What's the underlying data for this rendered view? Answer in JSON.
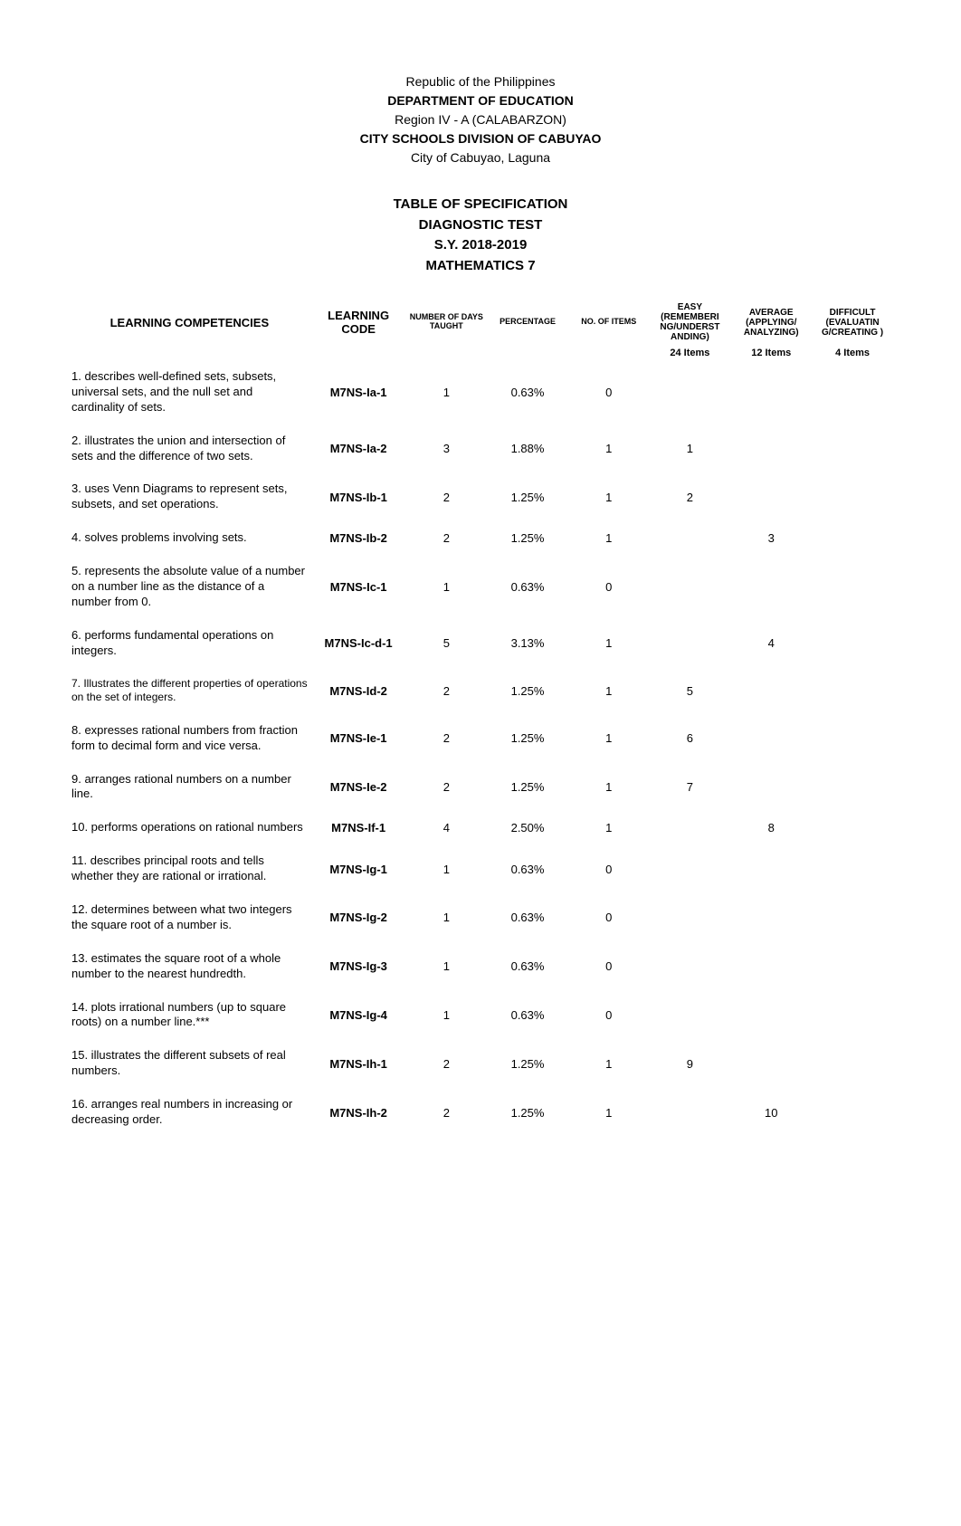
{
  "header": {
    "country": "Republic of the Philippines",
    "department": "DEPARTMENT OF EDUCATION",
    "region": "Region IV - A (CALABARZON)",
    "division": "CITY SCHOOLS DIVISION OF CABUYAO",
    "city": "City of Cabuyao, Laguna"
  },
  "title": {
    "line1": "TABLE OF SPECIFICATION",
    "line2": "DIAGNOSTIC TEST",
    "line3": "S.Y. 2018-2019",
    "line4": "MATHEMATICS 7"
  },
  "columns": {
    "comp": "LEARNING COMPETENCIES",
    "code": "LEARNING CODE",
    "days": "NUMBER OF DAYS TAUGHT",
    "pct": "PERCENTAGE",
    "items": "NO. OF ITEMS",
    "easy": "EASY (REMEMBERI NG/UNDERST ANDING)",
    "avg": "AVERAGE (APPLYING/ ANALYZING)",
    "diff": "DIFFICULT (EVALUATIN G/CREATING )"
  },
  "itemsRow": {
    "easy": "24 Items",
    "avg": "12 Items",
    "diff": "4 Items"
  },
  "rows": [
    {
      "comp": "1. describes well-defined sets, subsets, universal sets, and the null set and cardinality of sets.",
      "code": "M7NS-Ia-1",
      "days": "1",
      "pct": "0.63%",
      "items": "0",
      "easy": "",
      "avg": "",
      "diff": ""
    },
    {
      "comp": "2. illustrates the union and intersection of sets and the difference of two sets.",
      "code": "M7NS-Ia-2",
      "days": "3",
      "pct": "1.88%",
      "items": "1",
      "easy": "1",
      "avg": "",
      "diff": ""
    },
    {
      "comp": "3. uses Venn Diagrams to represent sets, subsets, and set operations.",
      "code": "M7NS-Ib-1",
      "days": "2",
      "pct": "1.25%",
      "items": "1",
      "easy": "2",
      "avg": "",
      "diff": ""
    },
    {
      "comp": "4. solves problems involving sets.",
      "code": "M7NS-Ib-2",
      "days": "2",
      "pct": "1.25%",
      "items": "1",
      "easy": "",
      "avg": "3",
      "diff": ""
    },
    {
      "comp": "5. represents the absolute value of a number on a number line as the distance of a number from 0.",
      "code": "M7NS-Ic-1",
      "days": "1",
      "pct": "0.63%",
      "items": "0",
      "easy": "",
      "avg": "",
      "diff": ""
    },
    {
      "comp": "6. performs fundamental operations on integers.",
      "code": "M7NS-Ic-d-1",
      "days": "5",
      "pct": "3.13%",
      "items": "1",
      "easy": "",
      "avg": "4",
      "diff": ""
    },
    {
      "comp": "7. Illustrates the different properties of operations on the set of integers.",
      "code": "M7NS-Id-2",
      "days": "2",
      "pct": "1.25%",
      "items": "1",
      "easy": "5",
      "avg": "",
      "diff": ""
    },
    {
      "comp": "8. expresses rational numbers from fraction form to decimal form and vice versa.",
      "code": "M7NS-Ie-1",
      "days": "2",
      "pct": "1.25%",
      "items": "1",
      "easy": "6",
      "avg": "",
      "diff": ""
    },
    {
      "comp": "9. arranges rational numbers on a number line.",
      "code": "M7NS-Ie-2",
      "days": "2",
      "pct": "1.25%",
      "items": "1",
      "easy": "7",
      "avg": "",
      "diff": ""
    },
    {
      "comp": "10. performs operations on rational numbers",
      "code": "M7NS-If-1",
      "days": "4",
      "pct": "2.50%",
      "items": "1",
      "easy": "",
      "avg": "8",
      "diff": ""
    },
    {
      "comp": "11. describes principal roots and tells whether they are rational or irrational.",
      "code": "M7NS-Ig-1",
      "days": "1",
      "pct": "0.63%",
      "items": "0",
      "easy": "",
      "avg": "",
      "diff": ""
    },
    {
      "comp": "12. determines between what two integers the square root of a number is.",
      "code": "M7NS-Ig-2",
      "days": "1",
      "pct": "0.63%",
      "items": "0",
      "easy": "",
      "avg": "",
      "diff": ""
    },
    {
      "comp": "13. estimates the square root of a whole number to the nearest hundredth.",
      "code": "M7NS-Ig-3",
      "days": "1",
      "pct": "0.63%",
      "items": "0",
      "easy": "",
      "avg": "",
      "diff": ""
    },
    {
      "comp": "14. plots irrational numbers (up to square roots) on a number line.***",
      "code": "M7NS-Ig-4",
      "days": "1",
      "pct": "0.63%",
      "items": "0",
      "easy": "",
      "avg": "",
      "diff": ""
    },
    {
      "comp": "15. illustrates the different subsets of real numbers.",
      "code": "M7NS-Ih-1",
      "days": "2",
      "pct": "1.25%",
      "items": "1",
      "easy": "9",
      "avg": "",
      "diff": ""
    },
    {
      "comp": "16. arranges real numbers in increasing or decreasing order.",
      "code": "M7NS-Ih-2",
      "days": "2",
      "pct": "1.25%",
      "items": "1",
      "easy": "",
      "avg": "10",
      "diff": ""
    }
  ]
}
